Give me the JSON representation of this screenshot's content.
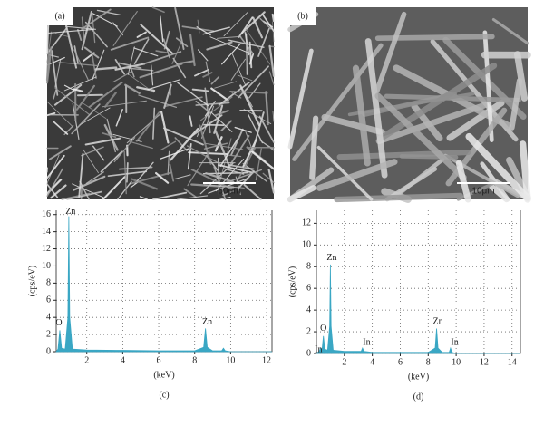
{
  "panels": [
    {
      "label": "(a)",
      "scale_bar": "50μm"
    },
    {
      "label": "(b)",
      "scale_bar": "10μm"
    }
  ],
  "chart_data": [
    {
      "type": "area",
      "color": "#3aa7c4",
      "caption": "(c)",
      "x_label": "(keV)",
      "y_label": "(cps/eV)",
      "x": [
        0.3,
        0.4,
        0.5,
        0.6,
        0.8,
        0.95,
        1.0,
        1.05,
        1.2,
        2,
        4,
        6,
        8,
        8.5,
        8.6,
        8.7,
        9.0,
        9.5,
        9.6,
        9.7,
        10,
        12,
        12.3
      ],
      "values": [
        0,
        0.3,
        2.5,
        0.4,
        0.3,
        4,
        15.8,
        4,
        0.3,
        0.2,
        0.15,
        0.1,
        0.1,
        0.5,
        2.7,
        0.5,
        0.1,
        0.1,
        0.4,
        0.1,
        0,
        0,
        0
      ],
      "xlim": [
        0.3,
        12.3
      ],
      "ylim": [
        0,
        16.5
      ],
      "xticks": [
        2,
        4,
        6,
        8,
        10,
        12
      ],
      "yticks": [
        0,
        2,
        4,
        6,
        8,
        10,
        12,
        14,
        16
      ],
      "grid": true,
      "annotations": [
        {
          "text": "O",
          "x": 0.45,
          "y": 3.3
        },
        {
          "text": "Zn",
          "x": 1.1,
          "y": 16.3
        },
        {
          "text": "Zn",
          "x": 8.7,
          "y": 3.4
        }
      ]
    },
    {
      "type": "area",
      "color": "#3aa7c4",
      "caption": "(d)",
      "x_label": "(keV)",
      "y_label": "(cps/eV)",
      "x": [
        0,
        0.2,
        0.3,
        0.4,
        0.5,
        0.6,
        0.8,
        0.95,
        1.0,
        1.05,
        1.2,
        2,
        3.2,
        3.3,
        3.4,
        4,
        6,
        8,
        8.5,
        8.6,
        8.7,
        9.0,
        9.5,
        9.6,
        9.7,
        10,
        14,
        14.6
      ],
      "values": [
        0,
        0.2,
        0.5,
        0.3,
        1.6,
        0.4,
        0.3,
        2.5,
        8.2,
        2.5,
        0.3,
        0.2,
        0.2,
        0.5,
        0.2,
        0.1,
        0.1,
        0.1,
        0.5,
        2.3,
        0.5,
        0.1,
        0.1,
        0.5,
        0.1,
        0,
        0,
        0
      ],
      "xlim": [
        0,
        14.6
      ],
      "ylim": [
        0,
        13.2
      ],
      "xticks": [
        2,
        4,
        6,
        8,
        10,
        12,
        14
      ],
      "yticks": [
        0,
        2,
        4,
        6,
        8,
        10,
        12
      ],
      "grid": true,
      "annotations": [
        {
          "text": "In",
          "x": 0.15,
          "y": 0.3
        },
        {
          "text": "O",
          "x": 0.5,
          "y": 2.3
        },
        {
          "text": "Zn",
          "x": 1.1,
          "y": 8.8
        },
        {
          "text": "In",
          "x": 3.6,
          "y": 1.0
        },
        {
          "text": "Zn",
          "x": 8.7,
          "y": 2.9
        },
        {
          "text": "In",
          "x": 9.9,
          "y": 1.0
        }
      ]
    }
  ]
}
